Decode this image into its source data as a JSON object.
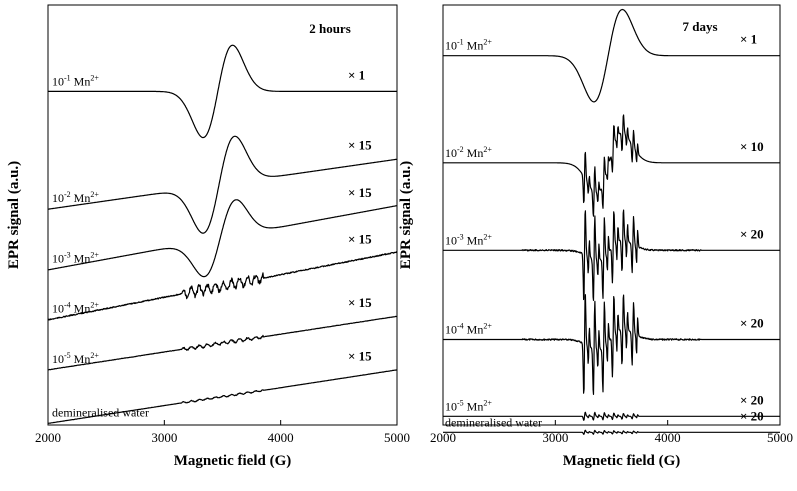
{
  "chart_data": [
    {
      "type": "line",
      "title": "2 hours",
      "xlabel": "Magnetic field (G)",
      "ylabel": "EPR signal (a.u.)",
      "xlim": [
        2000,
        5000
      ],
      "xticks": [
        "2000",
        "3000",
        "4000",
        "5000"
      ],
      "y_ticks_shown": false,
      "series": [
        {
          "name": "10-1 Mn2+",
          "label_base": "10",
          "label_exp": "-1",
          "label_ion": " Mn",
          "label_charge": "2+",
          "multiplier": "× 1",
          "baseline": 0.2,
          "slope": 0,
          "kind": "derivative",
          "center": 3460,
          "width": 170,
          "amplitude": 0.13,
          "ripple": 0
        },
        {
          "name": "10-2 Mn2+",
          "label_base": "10",
          "label_exp": "-2",
          "label_ion": " Mn",
          "label_charge": "2+",
          "multiplier": "× 15",
          "baseline": 0.53,
          "slope": 0.14,
          "kind": "derivative",
          "center": 3470,
          "width": 180,
          "amplitude": 0.13,
          "ripple": 0
        },
        {
          "name": "10-3 Mn2+",
          "label_base": "10",
          "label_exp": "-3",
          "label_ion": " Mn",
          "label_charge": "2+",
          "multiplier": "× 15",
          "baseline": 0.7,
          "slope": 0.18,
          "kind": "derivative",
          "center": 3480,
          "width": 180,
          "amplitude": 0.1,
          "ripple": 0
        },
        {
          "name": "10-4 Mn2+",
          "label_base": "10",
          "label_exp": "-4",
          "label_ion": " Mn",
          "label_charge": "2+",
          "multiplier": "× 15",
          "baseline": 0.84,
          "slope": 0.19,
          "kind": "ripple",
          "center": 3500,
          "width": 250,
          "amplitude": 0,
          "ripple": 0.012
        },
        {
          "name": "10-5 Mn2+",
          "label_base": "10",
          "label_exp": "-5",
          "label_ion": " Mn",
          "label_charge": "2+",
          "multiplier": "× 15",
          "baseline": 0.98,
          "slope": 0.15,
          "kind": "ripple",
          "center": 3500,
          "width": 250,
          "amplitude": 0,
          "ripple": 0.004
        },
        {
          "name": "demineralised water",
          "label_base": "demineralised water",
          "label_exp": "",
          "label_ion": "",
          "label_charge": "",
          "multiplier": "× 15",
          "baseline": 1.13,
          "slope": 0.15,
          "kind": "ripple",
          "center": 3500,
          "width": 250,
          "amplitude": 0,
          "ripple": 0.002
        }
      ]
    },
    {
      "type": "line",
      "title": "7 days",
      "xlabel": "Magnetic field (G)",
      "ylabel": "EPR signal (a.u.)",
      "xlim": [
        2000,
        5000
      ],
      "xticks": [
        "2000",
        "3000",
        "4000",
        "5000"
      ],
      "y_ticks_shown": false,
      "series": [
        {
          "name": "10-1 Mn2+",
          "label_base": "10",
          "label_exp": "-1",
          "label_ion": " Mn",
          "label_charge": "2+",
          "multiplier": "× 1",
          "baseline": 0.1,
          "slope": 0,
          "kind": "derivative",
          "center": 3470,
          "width": 170,
          "amplitude": 0.13,
          "ripple": 0
        },
        {
          "name": "10-2 Mn2+",
          "label_base": "10",
          "label_exp": "-2",
          "label_ion": " Mn",
          "label_charge": "2+",
          "multiplier": "× 10",
          "baseline": 0.4,
          "slope": 0,
          "kind": "hyperfine",
          "center": 3480,
          "width": 160,
          "amplitude": 0.09,
          "ripple": 0.08
        },
        {
          "name": "10-3 Mn2+",
          "label_base": "10",
          "label_exp": "-3",
          "label_ion": " Mn",
          "label_charge": "2+",
          "multiplier": "× 20",
          "baseline": 0.645,
          "slope": 0,
          "kind": "hyperfine",
          "center": 3490,
          "width": 160,
          "amplitude": 0.03,
          "ripple": 0.135
        },
        {
          "name": "10-4 Mn2+",
          "label_base": "10",
          "label_exp": "-4",
          "label_ion": " Mn",
          "label_charge": "2+",
          "multiplier": "× 20",
          "baseline": 0.895,
          "slope": 0,
          "kind": "hyperfine",
          "center": 3490,
          "width": 160,
          "amplitude": 0.03,
          "ripple": 0.15
        },
        {
          "name": "10-5 Mn2+",
          "label_base": "10",
          "label_exp": "-5",
          "label_ion": " Mn",
          "label_charge": "2+",
          "multiplier": "× 20",
          "baseline": 1.11,
          "slope": 0,
          "kind": "hyperfine",
          "center": 3490,
          "width": 160,
          "amplitude": 0,
          "ripple": 0.012
        },
        {
          "name": "demineralised water",
          "label_base": "demineralised water",
          "label_exp": "",
          "label_ion": "",
          "label_charge": "",
          "multiplier": "× 20",
          "baseline": 1.155,
          "slope": 0,
          "kind": "hyperfine",
          "center": 3490,
          "width": 160,
          "amplitude": 0,
          "ripple": 0.006
        }
      ]
    }
  ]
}
